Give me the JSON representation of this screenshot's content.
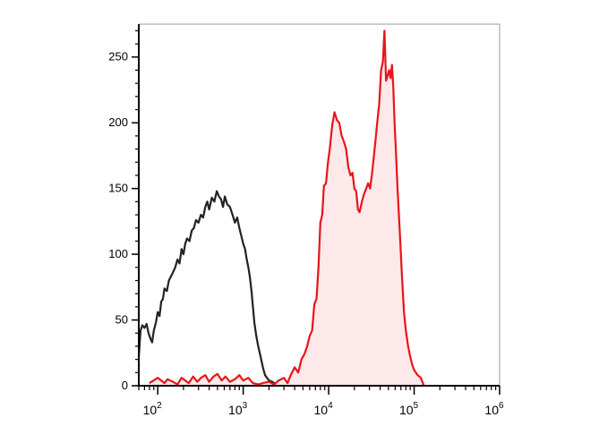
{
  "chart_data": {
    "type": "area",
    "x_scale": "log",
    "xlim": [
      60,
      1000000
    ],
    "ylim": [
      0,
      275
    ],
    "grid": false,
    "legend": "none",
    "title": "",
    "xlabel": "",
    "ylabel": "",
    "x_ticks": [
      {
        "value": 100,
        "base": "10",
        "exp": "2"
      },
      {
        "value": 1000,
        "base": "10",
        "exp": "3"
      },
      {
        "value": 10000,
        "base": "10",
        "exp": "4"
      },
      {
        "value": 100000,
        "base": "10",
        "exp": "5"
      },
      {
        "value": 1000000,
        "base": "10",
        "exp": "6"
      }
    ],
    "y_ticks": [
      {
        "value": 0,
        "label": "0"
      },
      {
        "value": 50,
        "label": "50"
      },
      {
        "value": 100,
        "label": "100"
      },
      {
        "value": 150,
        "label": "150"
      },
      {
        "value": 200,
        "label": "200"
      },
      {
        "value": 250,
        "label": "250"
      }
    ],
    "series": [
      {
        "color": "#222222",
        "fill": "none",
        "points": [
          [
            60,
            22
          ],
          [
            63,
            42
          ],
          [
            66,
            46
          ],
          [
            70,
            44
          ],
          [
            74,
            47
          ],
          [
            78,
            40
          ],
          [
            82,
            36
          ],
          [
            86,
            33
          ],
          [
            90,
            42
          ],
          [
            95,
            48
          ],
          [
            100,
            56
          ],
          [
            105,
            53
          ],
          [
            110,
            64
          ],
          [
            115,
            66
          ],
          [
            120,
            74
          ],
          [
            128,
            72
          ],
          [
            135,
            80
          ],
          [
            140,
            82
          ],
          [
            150,
            86
          ],
          [
            160,
            90
          ],
          [
            170,
            96
          ],
          [
            180,
            93
          ],
          [
            190,
            104
          ],
          [
            200,
            100
          ],
          [
            210,
            108
          ],
          [
            220,
            112
          ],
          [
            235,
            110
          ],
          [
            250,
            118
          ],
          [
            265,
            120
          ],
          [
            280,
            126
          ],
          [
            300,
            124
          ],
          [
            320,
            130
          ],
          [
            340,
            128
          ],
          [
            360,
            136
          ],
          [
            380,
            140
          ],
          [
            400,
            134
          ],
          [
            430,
            143
          ],
          [
            460,
            140
          ],
          [
            490,
            148
          ],
          [
            520,
            144
          ],
          [
            550,
            142
          ],
          [
            580,
            136
          ],
          [
            610,
            144
          ],
          [
            650,
            138
          ],
          [
            700,
            136
          ],
          [
            750,
            130
          ],
          [
            800,
            124
          ],
          [
            850,
            128
          ],
          [
            900,
            120
          ],
          [
            950,
            114
          ],
          [
            1000,
            108
          ],
          [
            1050,
            104
          ],
          [
            1100,
            96
          ],
          [
            1150,
            90
          ],
          [
            1200,
            82
          ],
          [
            1250,
            72
          ],
          [
            1300,
            60
          ],
          [
            1350,
            48
          ],
          [
            1420,
            38
          ],
          [
            1500,
            30
          ],
          [
            1600,
            22
          ],
          [
            1700,
            14
          ],
          [
            1800,
            8
          ],
          [
            1900,
            6
          ],
          [
            2000,
            4
          ],
          [
            2200,
            3
          ],
          [
            2400,
            1
          ],
          [
            2600,
            2
          ],
          [
            3000,
            1
          ],
          [
            3500,
            0
          ],
          [
            4000,
            0
          ]
        ]
      },
      {
        "color": "#e8141b",
        "fill": "#fde8ea",
        "points": [
          [
            80,
            2
          ],
          [
            100,
            6
          ],
          [
            110,
            4
          ],
          [
            120,
            2
          ],
          [
            130,
            5
          ],
          [
            150,
            3
          ],
          [
            170,
            1
          ],
          [
            190,
            6
          ],
          [
            210,
            4
          ],
          [
            230,
            2
          ],
          [
            260,
            7
          ],
          [
            290,
            3
          ],
          [
            320,
            6
          ],
          [
            360,
            8
          ],
          [
            400,
            3
          ],
          [
            450,
            7
          ],
          [
            500,
            9
          ],
          [
            560,
            4
          ],
          [
            620,
            7
          ],
          [
            700,
            3
          ],
          [
            800,
            5
          ],
          [
            900,
            8
          ],
          [
            1000,
            4
          ],
          [
            1150,
            6
          ],
          [
            1300,
            2
          ],
          [
            1500,
            1
          ],
          [
            1700,
            2
          ],
          [
            2000,
            3
          ],
          [
            2300,
            1
          ],
          [
            2600,
            4
          ],
          [
            3000,
            6
          ],
          [
            3300,
            2
          ],
          [
            3600,
            8
          ],
          [
            4000,
            14
          ],
          [
            4400,
            10
          ],
          [
            4800,
            20
          ],
          [
            5200,
            24
          ],
          [
            5600,
            30
          ],
          [
            6000,
            38
          ],
          [
            6400,
            42
          ],
          [
            6800,
            62
          ],
          [
            7200,
            66
          ],
          [
            7600,
            90
          ],
          [
            8000,
            124
          ],
          [
            8400,
            130
          ],
          [
            8800,
            152
          ],
          [
            9300,
            154
          ],
          [
            9800,
            170
          ],
          [
            10300,
            180
          ],
          [
            11000,
            198
          ],
          [
            11700,
            208
          ],
          [
            12500,
            202
          ],
          [
            13300,
            200
          ],
          [
            14200,
            190
          ],
          [
            15000,
            186
          ],
          [
            16000,
            180
          ],
          [
            17000,
            166
          ],
          [
            18000,
            160
          ],
          [
            19000,
            162
          ],
          [
            20000,
            150
          ],
          [
            21000,
            148
          ],
          [
            22000,
            134
          ],
          [
            23000,
            132
          ],
          [
            24500,
            140
          ],
          [
            26000,
            146
          ],
          [
            27500,
            150
          ],
          [
            29000,
            154
          ],
          [
            30500,
            150
          ],
          [
            32000,
            160
          ],
          [
            33500,
            172
          ],
          [
            35000,
            184
          ],
          [
            37000,
            200
          ],
          [
            39000,
            214
          ],
          [
            41000,
            240
          ],
          [
            43000,
            246
          ],
          [
            45000,
            270
          ],
          [
            47000,
            232
          ],
          [
            49000,
            236
          ],
          [
            51000,
            240
          ],
          [
            53000,
            234
          ],
          [
            55000,
            244
          ],
          [
            57000,
            228
          ],
          [
            59000,
            200
          ],
          [
            61000,
            180
          ],
          [
            64000,
            150
          ],
          [
            68000,
            116
          ],
          [
            72000,
            84
          ],
          [
            76000,
            56
          ],
          [
            80000,
            42
          ],
          [
            85000,
            30
          ],
          [
            90000,
            22
          ],
          [
            95000,
            16
          ],
          [
            100000,
            12
          ],
          [
            110000,
            8
          ],
          [
            120000,
            6
          ],
          [
            130000,
            0
          ]
        ]
      }
    ]
  }
}
